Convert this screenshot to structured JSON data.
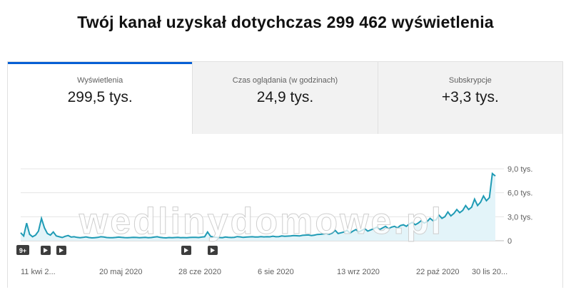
{
  "headline": "Twój kanał uzyskał dotychczas 299 462 wyświetlenia",
  "tabs": [
    {
      "label": "Wyświetlenia",
      "value": "299,5 tys.",
      "active": true
    },
    {
      "label": "Czas oglądania (w godzinach)",
      "value": "24,9 tys.",
      "active": false
    },
    {
      "label": "Subskrypcje",
      "value": "+3,3 tys.",
      "active": false
    }
  ],
  "watermark": "wedlinydomowe.pl",
  "markers": {
    "badge": "9+",
    "play_icon": "play-icon"
  },
  "colors": {
    "accent": "#065fd4",
    "line": "#1f9bb5",
    "fill": "#e3f4f9"
  },
  "chart_data": {
    "type": "area",
    "x_tick_labels": [
      "11 kwi 2...",
      "20 maj 2020",
      "28 cze 2020",
      "6 sie 2020",
      "13 wrz 2020",
      "22 paź 2020",
      "30 lis 20..."
    ],
    "y_tick_labels": [
      "0",
      "3,0 tys.",
      "6,0 tys.",
      "9,0 tys."
    ],
    "ylim": [
      0,
      9000
    ],
    "values": [
      1000,
      600,
      2200,
      800,
      500,
      700,
      1200,
      2800,
      1600,
      900,
      700,
      1100,
      600,
      500,
      400,
      550,
      650,
      450,
      500,
      420,
      380,
      420,
      480,
      400,
      360,
      380,
      420,
      500,
      460,
      400,
      380,
      370,
      410,
      450,
      420,
      390,
      380,
      400,
      430,
      410,
      380,
      400,
      420,
      380,
      400,
      450,
      500,
      420,
      380,
      360,
      400,
      380,
      400,
      420,
      380,
      390,
      380,
      410,
      430,
      420,
      400,
      450,
      500,
      1100,
      550,
      450,
      420,
      400,
      380,
      460,
      420,
      400,
      430,
      520,
      480,
      420,
      450,
      480,
      500,
      470,
      460,
      520,
      480,
      500,
      490,
      560,
      500,
      520,
      600,
      560,
      580,
      600,
      650,
      620,
      600,
      680,
      700,
      720,
      650,
      700,
      780,
      800,
      850,
      900,
      800,
      950,
      1300,
      900,
      1000,
      1100,
      1300,
      950,
      1200,
      1400,
      1100,
      1300,
      1500,
      1200,
      1350,
      1500,
      1700,
      1400,
      1600,
      1800,
      1500,
      1700,
      1800,
      1600,
      1900,
      2000,
      1800,
      2100,
      2300,
      2000,
      2200,
      2500,
      2200,
      2400,
      2800,
      2500,
      2600,
      3200,
      2800,
      3000,
      3600,
      3100,
      3400,
      3900,
      3500,
      3800,
      4400,
      3900,
      4200,
      5200,
      4400,
      4800,
      5600,
      5000,
      5400,
      8400,
      8100
    ]
  }
}
